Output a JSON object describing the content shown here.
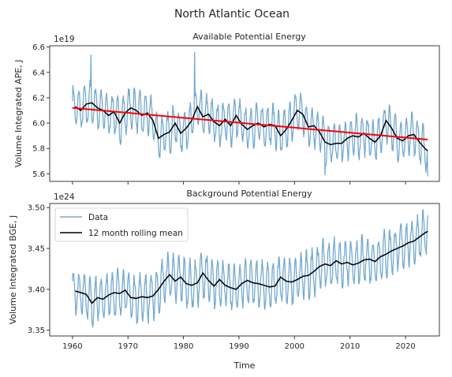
{
  "figure": {
    "suptitle": "North Atlantic Ocean",
    "xlabel": "Time"
  },
  "chart_data": [
    {
      "type": "line",
      "title": "Available Potential Energy",
      "ylabel": "Volume Integrated APE, J",
      "y_multiplier": "1e19",
      "xlim": [
        1955.9,
        2026.1
      ],
      "ylim": [
        5.54,
        6.61
      ],
      "x_ticks": [
        1960,
        1970,
        1980,
        1990,
        2000,
        2010,
        2020
      ],
      "x_tick_labels_visible": false,
      "y_ticks": [
        5.6,
        5.8,
        6.0,
        6.2,
        6.4,
        6.6
      ],
      "y_tick_labels": [
        "5.6",
        "5.8",
        "6.0",
        "6.2",
        "6.4",
        "6.6"
      ],
      "grid": false,
      "legend": null,
      "series": [
        {
          "color": "#74a9cf",
          "style": "monthly seasonal cycle (about 12 points per year)",
          "x_range": [
            1960.0,
            2024.0
          ],
          "annual_amplitude": 0.15,
          "extreme_peaks": [
            {
              "x": 1963.3,
              "y": 6.54
            },
            {
              "x": 1982.0,
              "y": 6.56
            }
          ],
          "extreme_troughs": [
            {
              "x": 2005.5,
              "y": 5.59
            },
            {
              "x": 2024.0,
              "y": 5.58
            }
          ]
        },
        {
          "color": "#000000",
          "style": "rolling mean",
          "points": [
            [
              1960.5,
              6.13
            ],
            [
              1961.5,
              6.1
            ],
            [
              1962.5,
              6.15
            ],
            [
              1963.5,
              6.16
            ],
            [
              1964.5,
              6.12
            ],
            [
              1965.5,
              6.1
            ],
            [
              1966.5,
              6.06
            ],
            [
              1967.5,
              6.09
            ],
            [
              1968.5,
              6.0
            ],
            [
              1969.5,
              6.08
            ],
            [
              1970.5,
              6.12
            ],
            [
              1971.5,
              6.1
            ],
            [
              1972.5,
              6.06
            ],
            [
              1973.5,
              6.08
            ],
            [
              1974.5,
              6.02
            ],
            [
              1975.5,
              5.88
            ],
            [
              1976.5,
              5.91
            ],
            [
              1977.5,
              5.93
            ],
            [
              1978.5,
              6.0
            ],
            [
              1979.5,
              5.92
            ],
            [
              1980.5,
              5.96
            ],
            [
              1981.5,
              6.02
            ],
            [
              1982.5,
              6.13
            ],
            [
              1983.5,
              6.05
            ],
            [
              1984.5,
              6.07
            ],
            [
              1985.5,
              6.01
            ],
            [
              1986.5,
              5.98
            ],
            [
              1987.5,
              6.03
            ],
            [
              1988.5,
              5.98
            ],
            [
              1989.5,
              6.06
            ],
            [
              1990.5,
              5.99
            ],
            [
              1991.5,
              5.95
            ],
            [
              1992.5,
              5.98
            ],
            [
              1993.5,
              6.0
            ],
            [
              1994.5,
              5.97
            ],
            [
              1995.5,
              5.99
            ],
            [
              1996.5,
              5.98
            ],
            [
              1997.5,
              5.9
            ],
            [
              1998.5,
              5.95
            ],
            [
              1999.5,
              6.02
            ],
            [
              2000.5,
              6.1
            ],
            [
              2001.5,
              6.07
            ],
            [
              2002.5,
              5.97
            ],
            [
              2003.5,
              5.98
            ],
            [
              2004.5,
              5.93
            ],
            [
              2005.5,
              5.85
            ],
            [
              2006.5,
              5.83
            ],
            [
              2007.5,
              5.84
            ],
            [
              2008.5,
              5.84
            ],
            [
              2009.5,
              5.88
            ],
            [
              2010.5,
              5.9
            ],
            [
              2011.5,
              5.89
            ],
            [
              2012.5,
              5.92
            ],
            [
              2013.5,
              5.88
            ],
            [
              2014.5,
              5.85
            ],
            [
              2015.5,
              5.9
            ],
            [
              2016.5,
              6.02
            ],
            [
              2017.5,
              5.96
            ],
            [
              2018.5,
              5.88
            ],
            [
              2019.5,
              5.86
            ],
            [
              2020.5,
              5.9
            ],
            [
              2021.5,
              5.91
            ],
            [
              2022.5,
              5.85
            ],
            [
              2023.5,
              5.8
            ],
            [
              2024.0,
              5.78
            ]
          ]
        },
        {
          "color": "#ff0000",
          "style": "linear trend",
          "points": [
            [
              1960.0,
              6.12
            ],
            [
              2024.0,
              5.87
            ]
          ]
        }
      ]
    },
    {
      "type": "line",
      "title": "Background Potential Energy",
      "ylabel": "Volume Integrated BGE, J",
      "y_multiplier": "1e24",
      "xlim": [
        1955.9,
        2026.1
      ],
      "ylim": [
        3.343,
        3.505
      ],
      "x_ticks": [
        1960,
        1970,
        1980,
        1990,
        2000,
        2010,
        2020
      ],
      "x_tick_labels": [
        "1960",
        "1970",
        "1980",
        "1990",
        "2000",
        "2010",
        "2020"
      ],
      "y_ticks": [
        3.35,
        3.4,
        3.45,
        3.5
      ],
      "y_tick_labels": [
        "3.35",
        "3.40",
        "3.45",
        "3.50"
      ],
      "grid": false,
      "legend": "top-left",
      "series": [
        {
          "name": "Data",
          "color": "#74a9cf",
          "style": "monthly seasonal cycle (about 12 points per year)",
          "x_range": [
            1960.0,
            2024.0
          ],
          "annual_amplitude": 0.026
        },
        {
          "name": "12 month rolling mean",
          "color": "#000000",
          "style": "rolling mean",
          "points": [
            [
              1960.5,
              3.398
            ],
            [
              1961.5,
              3.396
            ],
            [
              1962.5,
              3.394
            ],
            [
              1963.5,
              3.383
            ],
            [
              1964.5,
              3.39
            ],
            [
              1965.5,
              3.388
            ],
            [
              1966.5,
              3.393
            ],
            [
              1967.5,
              3.396
            ],
            [
              1968.5,
              3.395
            ],
            [
              1969.5,
              3.399
            ],
            [
              1970.5,
              3.39
            ],
            [
              1971.5,
              3.389
            ],
            [
              1972.5,
              3.391
            ],
            [
              1973.5,
              3.39
            ],
            [
              1974.5,
              3.392
            ],
            [
              1975.5,
              3.4
            ],
            [
              1976.5,
              3.41
            ],
            [
              1977.5,
              3.418
            ],
            [
              1978.5,
              3.41
            ],
            [
              1979.5,
              3.415
            ],
            [
              1980.5,
              3.407
            ],
            [
              1981.5,
              3.405
            ],
            [
              1982.5,
              3.408
            ],
            [
              1983.5,
              3.42
            ],
            [
              1984.5,
              3.411
            ],
            [
              1985.5,
              3.404
            ],
            [
              1986.5,
              3.412
            ],
            [
              1987.5,
              3.405
            ],
            [
              1988.5,
              3.402
            ],
            [
              1989.5,
              3.4
            ],
            [
              1990.5,
              3.407
            ],
            [
              1991.5,
              3.411
            ],
            [
              1992.5,
              3.408
            ],
            [
              1993.5,
              3.407
            ],
            [
              1994.5,
              3.405
            ],
            [
              1995.5,
              3.403
            ],
            [
              1996.5,
              3.404
            ],
            [
              1997.5,
              3.415
            ],
            [
              1998.5,
              3.41
            ],
            [
              1999.5,
              3.409
            ],
            [
              2000.5,
              3.412
            ],
            [
              2001.5,
              3.416
            ],
            [
              2002.5,
              3.417
            ],
            [
              2003.5,
              3.422
            ],
            [
              2004.5,
              3.428
            ],
            [
              2005.5,
              3.431
            ],
            [
              2006.5,
              3.429
            ],
            [
              2007.5,
              3.435
            ],
            [
              2008.5,
              3.431
            ],
            [
              2009.5,
              3.433
            ],
            [
              2010.5,
              3.43
            ],
            [
              2011.5,
              3.432
            ],
            [
              2012.5,
              3.436
            ],
            [
              2013.5,
              3.437
            ],
            [
              2014.5,
              3.434
            ],
            [
              2015.5,
              3.44
            ],
            [
              2016.5,
              3.443
            ],
            [
              2017.5,
              3.447
            ],
            [
              2018.5,
              3.45
            ],
            [
              2019.5,
              3.453
            ],
            [
              2020.5,
              3.457
            ],
            [
              2021.5,
              3.459
            ],
            [
              2022.5,
              3.464
            ],
            [
              2023.5,
              3.469
            ],
            [
              2024.0,
              3.471
            ]
          ]
        }
      ]
    }
  ]
}
